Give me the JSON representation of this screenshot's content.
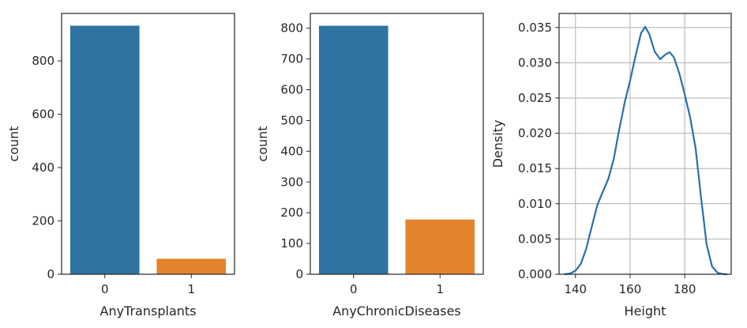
{
  "chart_data": [
    {
      "type": "bar",
      "categories": [
        "0",
        "1"
      ],
      "values": [
        932,
        58
      ],
      "colors": [
        "#2f73a3",
        "#e3832b"
      ],
      "xlabel": "AnyTransplants",
      "ylabel": "count",
      "ylim": [
        0,
        978
      ],
      "yticks": [
        0,
        200,
        400,
        600,
        800
      ],
      "grid": false
    },
    {
      "type": "bar",
      "categories": [
        "0",
        "1"
      ],
      "values": [
        808,
        178
      ],
      "colors": [
        "#2f73a3",
        "#e3832b"
      ],
      "xlabel": "AnyChronicDiseases",
      "ylabel": "count",
      "ylim": [
        0,
        848
      ],
      "yticks": [
        0,
        100,
        200,
        300,
        400,
        500,
        600,
        700,
        800
      ],
      "grid": false
    },
    {
      "type": "line",
      "xlabel": "Height",
      "ylabel": "Density",
      "xlim": [
        134,
        197
      ],
      "ylim": [
        0,
        0.037
      ],
      "xticks": [
        140,
        160,
        180
      ],
      "yticks": [
        "0.000",
        "0.005",
        "0.010",
        "0.015",
        "0.020",
        "0.025",
        "0.030",
        "0.035"
      ],
      "grid": true,
      "color": "#2a6fa8",
      "x": [
        135.9,
        138,
        140,
        142,
        144,
        146,
        148,
        150,
        152,
        154,
        156,
        158,
        160,
        162,
        164,
        165.5,
        167,
        169,
        171,
        173,
        174.5,
        176,
        178,
        180,
        182,
        184,
        186,
        188,
        190,
        192,
        194,
        195.5
      ],
      "y": [
        0.0,
        0.0001,
        0.0005,
        0.0015,
        0.0037,
        0.0068,
        0.0098,
        0.0117,
        0.0135,
        0.0163,
        0.0205,
        0.0243,
        0.0275,
        0.031,
        0.0342,
        0.0351,
        0.0341,
        0.0316,
        0.0305,
        0.0312,
        0.0315,
        0.0308,
        0.0285,
        0.0255,
        0.0222,
        0.0178,
        0.0108,
        0.0042,
        0.0011,
        0.0002,
        2e-05,
        0.0
      ]
    }
  ]
}
